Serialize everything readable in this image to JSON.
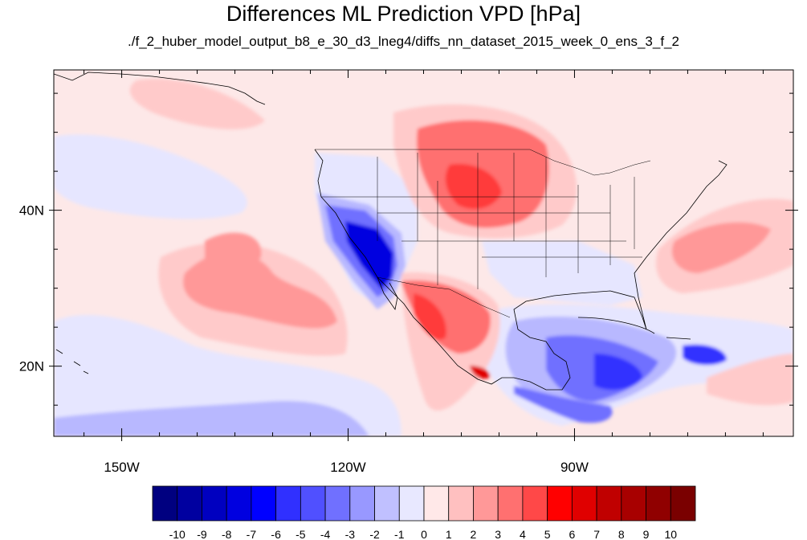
{
  "title": "Differences ML Prediction VPD [hPa]",
  "subtitle": "./f_2_huber_model_output_b8_e_30_d3_lneg4/diffs_nn_dataset_2015_week_0_ens_3_f_2",
  "map": {
    "lon_range": [
      -159,
      -61
    ],
    "lat_range": [
      11,
      58
    ],
    "lon_ticks": [
      {
        "value": -150,
        "label": "150W"
      },
      {
        "value": -120,
        "label": "120W"
      },
      {
        "value": -90,
        "label": "90W"
      }
    ],
    "lat_ticks": [
      {
        "value": 40,
        "label": "40N"
      },
      {
        "value": 20,
        "label": "20N"
      }
    ],
    "background_color": "#fde8e8"
  },
  "colorbar": {
    "colors": [
      "#000080",
      "#0000a0",
      "#0000c0",
      "#0000e0",
      "#0000ff",
      "#3030ff",
      "#5050ff",
      "#7070ff",
      "#9898ff",
      "#c0c0ff",
      "#e8e8ff",
      "#ffe8e8",
      "#ffc0c0",
      "#ff9898",
      "#ff7070",
      "#ff4848",
      "#ff0000",
      "#e00000",
      "#c00000",
      "#a80000",
      "#900000",
      "#7a0000"
    ],
    "labels": [
      "-10",
      "-9",
      "-8",
      "-7",
      "-6",
      "-5",
      "-4",
      "-3",
      "-2",
      "-1",
      "0",
      "1",
      "2",
      "3",
      "4",
      "5",
      "6",
      "7",
      "8",
      "9",
      "10"
    ]
  }
}
